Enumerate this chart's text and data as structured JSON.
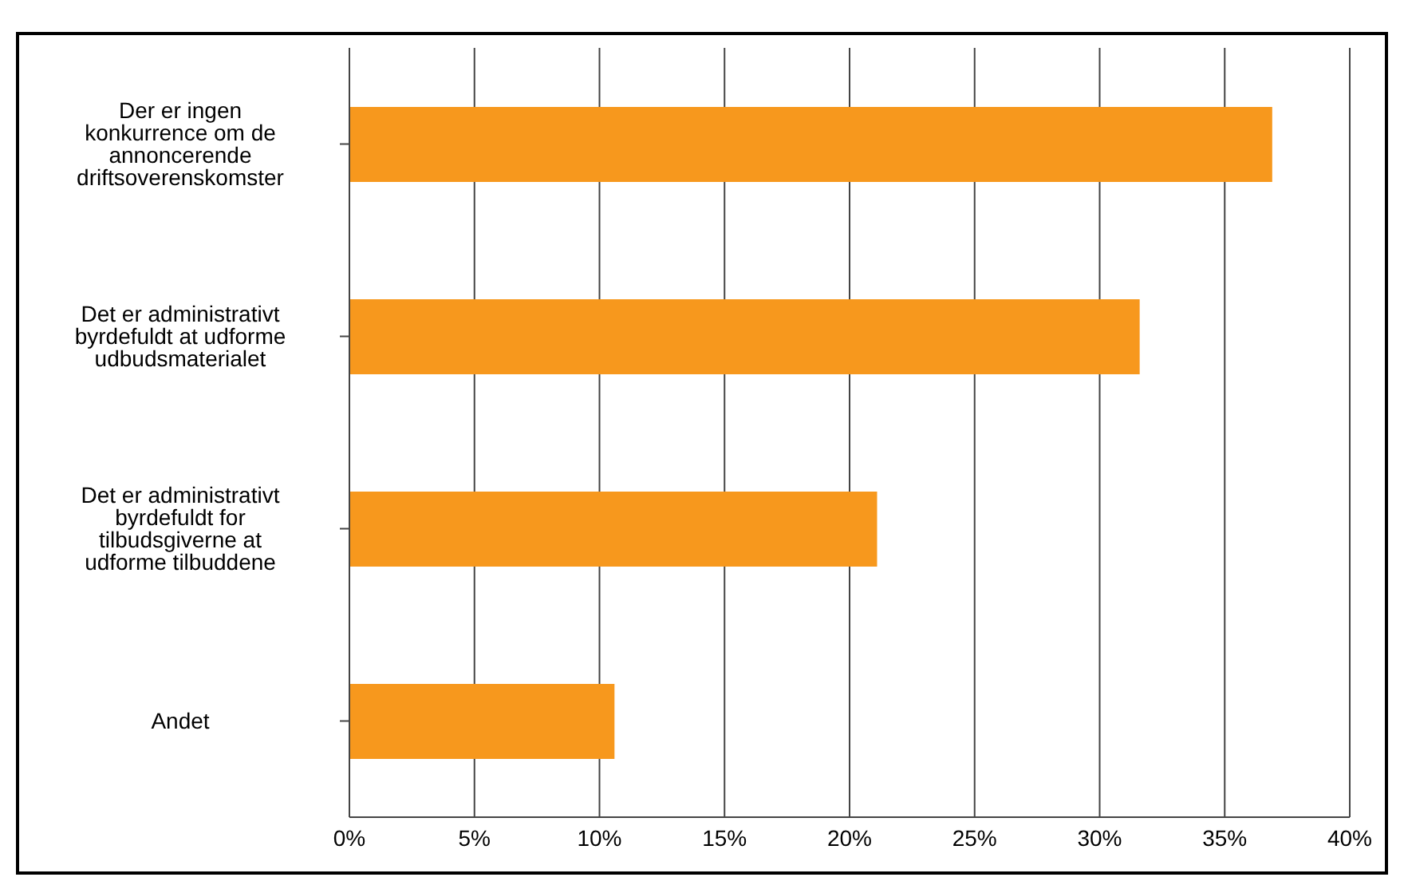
{
  "chart_data": {
    "type": "bar",
    "orientation": "horizontal",
    "categories": [
      "Der er ingen konkurrence om de annoncerende driftsoverenskomster",
      "Det er administrativt byrdefuldt at udforme udbudsmaterialet",
      "Det er administrativt byrdefuldt for tilbudsgiverne at udforme tilbuddene",
      "Andet"
    ],
    "values": [
      36.9,
      31.6,
      21.1,
      10.6
    ],
    "color": "#f7981d",
    "xlim": [
      0,
      40
    ],
    "xticks": [
      {
        "value": 0,
        "label": "0%"
      },
      {
        "value": 5,
        "label": "5%"
      },
      {
        "value": 10,
        "label": "10%"
      },
      {
        "value": 15,
        "label": "15%"
      },
      {
        "value": 20,
        "label": "20%"
      },
      {
        "value": 25,
        "label": "25%"
      },
      {
        "value": 30,
        "label": "30%"
      },
      {
        "value": 35,
        "label": "35%"
      },
      {
        "value": 40,
        "label": "40%"
      }
    ],
    "grid": "x",
    "legend": false
  }
}
